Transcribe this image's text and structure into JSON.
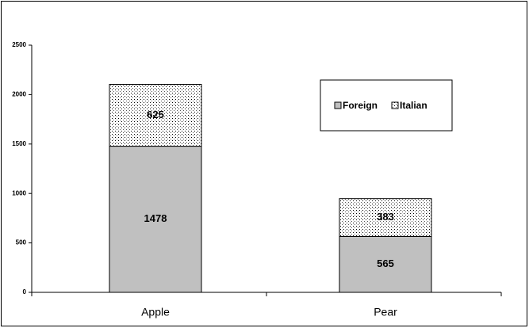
{
  "chart_data": {
    "type": "stacked_bar",
    "categories": [
      "Apple",
      "Pear"
    ],
    "series": [
      {
        "name": "Foreign",
        "color": "#c0c0c0",
        "values": [
          1478,
          565
        ]
      },
      {
        "name": "Italian",
        "color": "dotted",
        "values": [
          625,
          383
        ]
      }
    ],
    "ylim": [
      0,
      2500
    ],
    "yticks": [
      0,
      500,
      1000,
      1500,
      2000,
      2500
    ],
    "grid": false,
    "legend": "upper right"
  }
}
